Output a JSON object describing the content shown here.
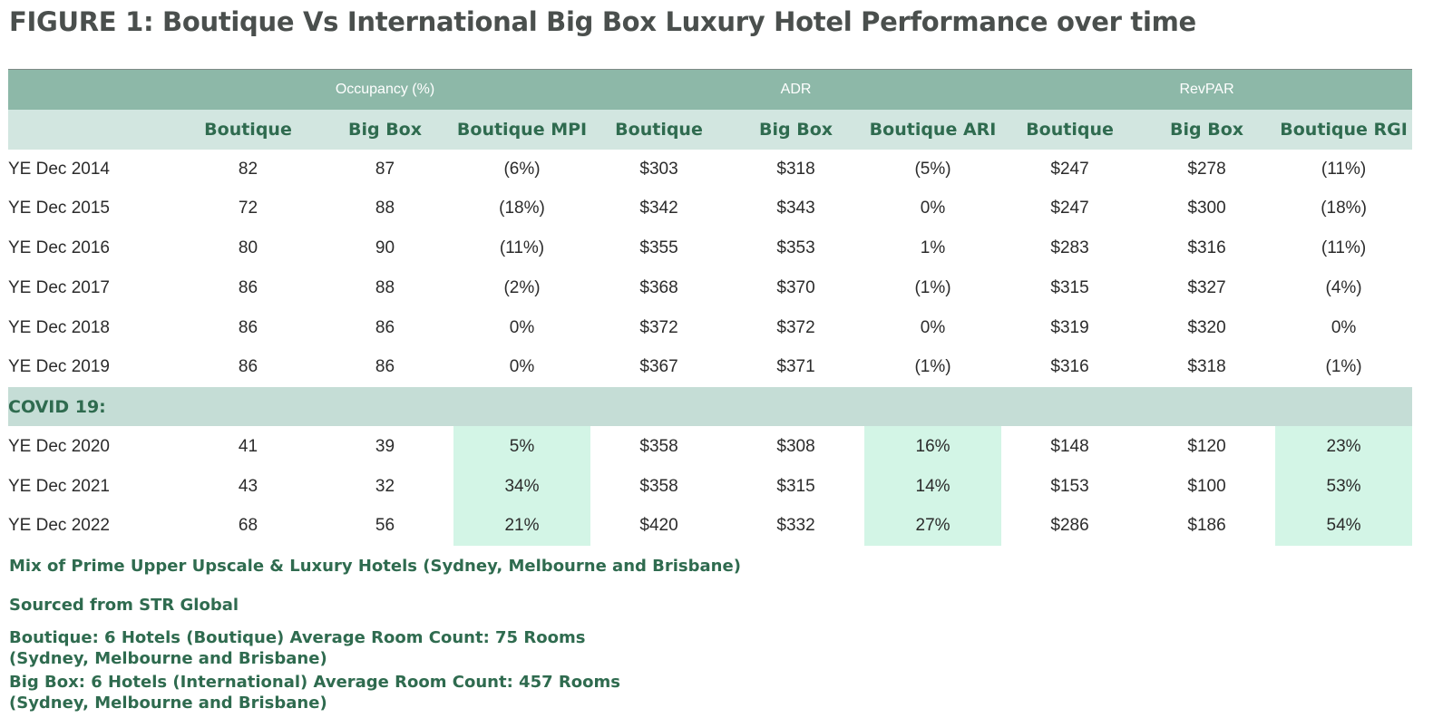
{
  "title": "FIGURE 1:  Boutique Vs International Big Box Luxury Hotel Performance over time",
  "colors": {
    "header_band": "#8db8a8",
    "subheader_band": "#d2e6e0",
    "covid_band": "#c5ddd6",
    "highlight": "#d3f5e6",
    "accent_text": "#2f6b4f",
    "title_text": "#4a4f4d"
  },
  "chart_data": {
    "type": "table",
    "title": "FIGURE 1:  Boutique Vs International Big Box Luxury Hotel Performance over time",
    "column_groups": [
      {
        "label": "Occupancy (%)",
        "span": 3
      },
      {
        "label": "ADR",
        "span": 3
      },
      {
        "label": "RevPAR",
        "span": 3
      }
    ],
    "columns": [
      "Boutique",
      "Big Box",
      "Boutique MPI",
      "Boutique",
      "Big Box",
      "Boutique ARI",
      "Boutique",
      "Big Box",
      "Boutique RGI"
    ],
    "pre_covid_rows": [
      {
        "label": "YE Dec 2014",
        "values": [
          "82",
          "87",
          "(6%)",
          "$303",
          "$318",
          "(5%)",
          "$247",
          "$278",
          "(11%)"
        ]
      },
      {
        "label": "YE Dec 2015",
        "values": [
          "72",
          "88",
          "(18%)",
          "$342",
          "$343",
          "0%",
          "$247",
          "$300",
          "(18%)"
        ]
      },
      {
        "label": "YE Dec 2016",
        "values": [
          "80",
          "90",
          "(11%)",
          "$355",
          "$353",
          "1%",
          "$283",
          "$316",
          "(11%)"
        ]
      },
      {
        "label": "YE Dec 2017",
        "values": [
          "86",
          "88",
          "(2%)",
          "$368",
          "$370",
          "(1%)",
          "$315",
          "$327",
          "(4%)"
        ]
      },
      {
        "label": "YE Dec 2018",
        "values": [
          "86",
          "86",
          "0%",
          "$372",
          "$372",
          "0%",
          "$319",
          "$320",
          "0%"
        ]
      },
      {
        "label": "YE Dec 2019",
        "values": [
          "86",
          "86",
          "0%",
          "$367",
          "$371",
          "(1%)",
          "$316",
          "$318",
          "(1%)"
        ]
      }
    ],
    "section_label": "COVID 19:",
    "covid_rows": [
      {
        "label": "YE Dec 2020",
        "values": [
          "41",
          "39",
          "5%",
          "$358",
          "$308",
          "16%",
          "$148",
          "$120",
          "23%"
        ]
      },
      {
        "label": "YE Dec 2021",
        "values": [
          "43",
          "32",
          "34%",
          "$358",
          "$315",
          "14%",
          "$153",
          "$100",
          "53%"
        ]
      },
      {
        "label": "YE Dec 2022",
        "values": [
          "68",
          "56",
          "21%",
          "$420",
          "$332",
          "27%",
          "$286",
          "$186",
          "54%"
        ]
      }
    ]
  },
  "notes": {
    "mix": "Mix of Prime Upper Upscale & Luxury Hotels (Sydney, Melbourne and Brisbane)",
    "source": "Sourced from STR Global",
    "boutique_line1": "Boutique: 6 Hotels (Boutique) Average Room Count: 75 Rooms",
    "boutique_line2": "(Sydney, Melbourne and Brisbane)",
    "bigbox_line1": "Big Box: 6 Hotels (International) Average Room Count: 457 Rooms",
    "bigbox_line2": "(Sydney, Melbourne and Brisbane)"
  }
}
